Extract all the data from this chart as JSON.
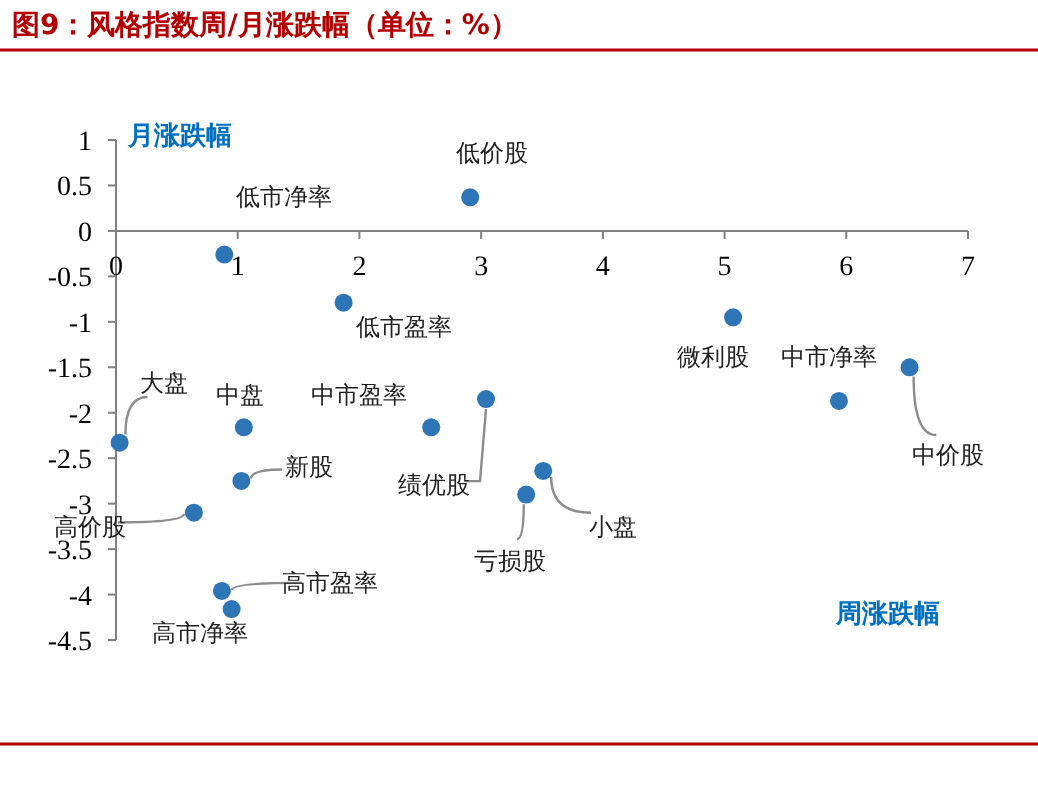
{
  "chart_data": {
    "type": "scatter",
    "title": "图9：风格指数周/月涨跌幅（单位：%）",
    "xlabel": "周涨跌幅",
    "ylabel": "月涨跌幅",
    "x": [
      0.89,
      2.91,
      1.87,
      5.07,
      5.94,
      6.52,
      0.03,
      1.05,
      2.59,
      3.04,
      1.03,
      3.37,
      3.51,
      0.64,
      0.87,
      0.95
    ],
    "values": [
      -0.26,
      0.37,
      -0.79,
      -0.95,
      -1.87,
      -1.5,
      -2.33,
      -2.16,
      -2.16,
      -1.85,
      -2.75,
      -2.9,
      -2.64,
      -3.1,
      -3.96,
      -4.16
    ],
    "color": "#2e75b6",
    "marker": "circle",
    "xlim": [
      0,
      7
    ],
    "ylim": [
      -4.5,
      1
    ],
    "xticks": [
      0,
      1,
      2,
      3,
      4,
      5,
      6,
      7
    ],
    "yticks": [
      1,
      0.5,
      0,
      -0.5,
      -1,
      -1.5,
      -2,
      -2.5,
      -3,
      -3.5,
      -4,
      -4.5
    ],
    "annotations": [
      {
        "text": "低市净率",
        "x": 0.89,
        "y": -0.26
      },
      {
        "text": "低价股",
        "x": 2.91,
        "y": 0.37
      },
      {
        "text": "低市盈率",
        "x": 1.87,
        "y": -0.79
      },
      {
        "text": "微利股",
        "x": 5.07,
        "y": -0.95
      },
      {
        "text": "中市净率",
        "x": 5.94,
        "y": -1.87
      },
      {
        "text": "中价股",
        "x": 6.52,
        "y": -1.5
      },
      {
        "text": "大盘",
        "x": 0.03,
        "y": -2.33
      },
      {
        "text": "中盘",
        "x": 1.05,
        "y": -2.16
      },
      {
        "text": "中市盈率",
        "x": 2.59,
        "y": -2.16
      },
      {
        "text": "绩优股",
        "x": 3.04,
        "y": -1.85
      },
      {
        "text": "新股",
        "x": 1.03,
        "y": -2.75
      },
      {
        "text": "亏损股",
        "x": 3.37,
        "y": -2.9
      },
      {
        "text": "小盘",
        "x": 3.51,
        "y": -2.64
      },
      {
        "text": "高价股",
        "x": 0.64,
        "y": -3.1
      },
      {
        "text": "高市盈率",
        "x": 0.87,
        "y": -3.96
      },
      {
        "text": "高市净率",
        "x": 0.95,
        "y": -4.16
      }
    ]
  }
}
